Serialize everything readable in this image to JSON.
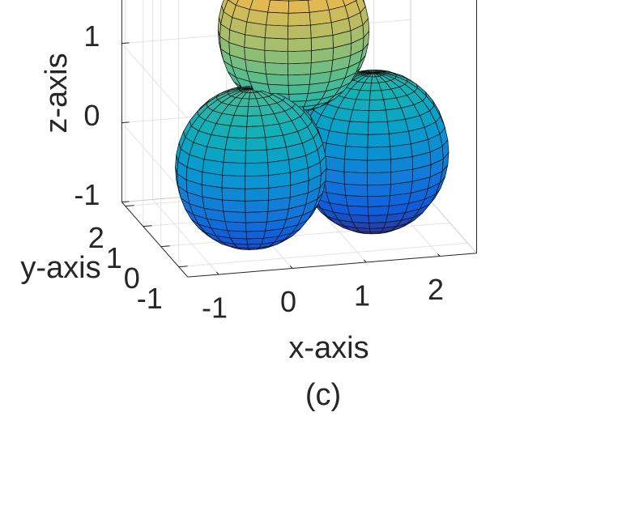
{
  "chart_data": {
    "type": "sphere3d",
    "caption": "(c)",
    "xlabel": "x-axis",
    "ylabel": "y-axis",
    "zlabel": "z-axis",
    "xlim": [
      -1.42,
      2.5
    ],
    "ylim": [
      -1.5,
      2.2
    ],
    "zlim": [
      -1,
      2.5
    ],
    "xticks": [
      -1,
      0,
      1,
      2
    ],
    "yticks": [
      -1,
      0,
      1,
      2
    ],
    "zticks": [
      -1,
      0,
      1
    ],
    "grid": true,
    "colormap": "parula",
    "spheres": [
      {
        "center": [
          -0.2,
          0,
          -0.1
        ],
        "radius": 1
      },
      {
        "center": [
          1.7,
          1,
          -0.3
        ],
        "radius": 1
      },
      {
        "center": [
          0.5,
          0.5,
          1.45
        ],
        "radius": 1
      }
    ]
  }
}
